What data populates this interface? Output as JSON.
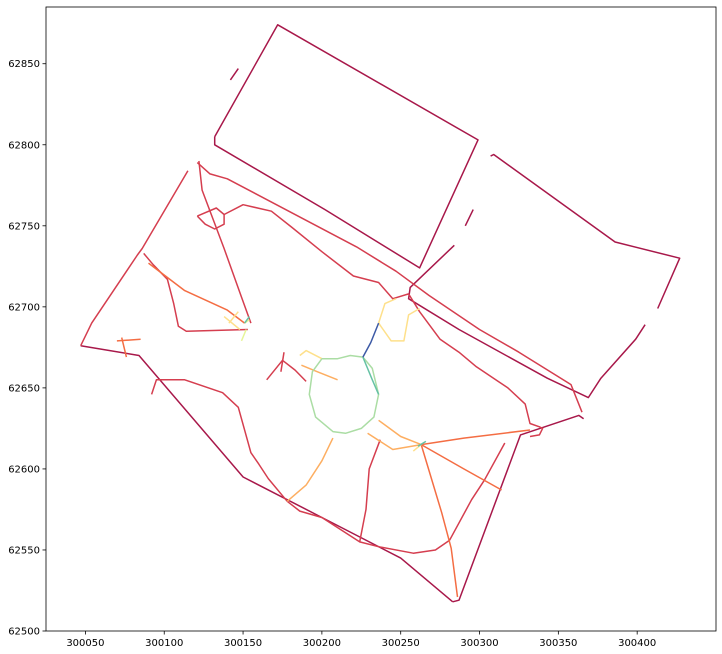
{
  "chart_data": {
    "type": "line",
    "title": "",
    "xlabel": "",
    "ylabel": "",
    "xlim": [
      300025,
      300450
    ],
    "ylim": [
      62500,
      62885
    ],
    "xticks": [
      300050,
      300100,
      300150,
      300200,
      300250,
      300300,
      300350,
      300400
    ],
    "yticks": [
      62500,
      62550,
      62600,
      62650,
      62700,
      62750,
      62800,
      62850
    ],
    "xtick_labels": [
      "300050",
      "300100",
      "300150",
      "300200",
      "300250",
      "300300",
      "300350",
      "300400"
    ],
    "ytick_labels": [
      "62500",
      "62550",
      "62600",
      "62650",
      "62700",
      "62750",
      "62800",
      "62850"
    ],
    "grid": false,
    "colors": {
      "crimson": "#a8184a",
      "red": "#d53e4f",
      "orange": "#f46d43",
      "light_orange": "#fdae61",
      "yellow": "#fee08b",
      "pale_yellow": "#e6f598",
      "light_green": "#abdda4",
      "teal": "#66c2a5",
      "blue": "#3d5aa6"
    },
    "series": [
      {
        "color": "crimson",
        "points": [
          [
            300132,
            62805
          ],
          [
            300172,
            62874
          ],
          [
            300299,
            62803
          ],
          [
            300262,
            62724
          ],
          [
            300202,
            62760
          ],
          [
            300132,
            62800
          ],
          [
            300132,
            62805
          ]
        ]
      },
      {
        "color": "crimson",
        "points": [
          [
            300142,
            62840
          ],
          [
            300147,
            62847
          ]
        ]
      },
      {
        "color": "crimson",
        "points": [
          [
            300307,
            62793
          ],
          [
            300309,
            62794
          ],
          [
            300386,
            62740
          ],
          [
            300427,
            62730
          ],
          [
            300413,
            62699
          ]
        ]
      },
      {
        "color": "crimson",
        "points": [
          [
            300296,
            62760
          ],
          [
            300291,
            62750
          ]
        ]
      },
      {
        "color": "crimson",
        "points": [
          [
            300405,
            62689
          ],
          [
            300399,
            62680
          ],
          [
            300377,
            62656
          ],
          [
            300369,
            62644
          ],
          [
            300343,
            62656
          ],
          [
            300287,
            62686
          ],
          [
            300255,
            62705
          ],
          [
            300256,
            62712
          ],
          [
            300284,
            62738
          ]
        ]
      },
      {
        "color": "crimson",
        "points": [
          [
            300366,
            62631
          ],
          [
            300363,
            62633
          ],
          [
            300326,
            62621
          ],
          [
            300287,
            62519
          ],
          [
            300283,
            62518
          ]
        ]
      },
      {
        "color": "crimson",
        "points": [
          [
            300283,
            62518
          ],
          [
            300250,
            62545
          ],
          [
            300200,
            62570
          ],
          [
            300150,
            62595
          ],
          [
            300084,
            62670
          ],
          [
            300047,
            62676
          ]
        ]
      },
      {
        "color": "red",
        "points": [
          [
            300047,
            62676
          ],
          [
            300054,
            62690
          ],
          [
            300083,
            62732
          ],
          [
            300086,
            62736
          ],
          [
            300115,
            62784
          ]
        ]
      },
      {
        "color": "red",
        "points": [
          [
            300121,
            62789
          ],
          [
            300129,
            62782
          ],
          [
            300140,
            62779
          ],
          [
            300222,
            62737
          ],
          [
            300247,
            62722
          ],
          [
            300268,
            62707
          ],
          [
            300300,
            62686
          ],
          [
            300325,
            62672
          ],
          [
            300358,
            62652
          ],
          [
            300365,
            62635
          ]
        ]
      },
      {
        "color": "red",
        "points": [
          [
            300122,
            62790
          ],
          [
            300124,
            62772
          ],
          [
            300138,
            62736
          ],
          [
            300149,
            62706
          ],
          [
            300155,
            62690
          ]
        ]
      },
      {
        "color": "red",
        "points": [
          [
            300087,
            62733
          ],
          [
            300093,
            62726
          ],
          [
            300102,
            62717
          ],
          [
            300106,
            62702
          ],
          [
            300109,
            62688
          ],
          [
            300114,
            62685
          ],
          [
            300153,
            62686
          ]
        ]
      },
      {
        "color": "red",
        "points": [
          [
            300121,
            62756
          ],
          [
            300133,
            62761
          ],
          [
            300138,
            62757
          ],
          [
            300138,
            62751
          ],
          [
            300132,
            62748
          ],
          [
            300126,
            62751
          ],
          [
            300121,
            62756
          ]
        ]
      },
      {
        "color": "red",
        "points": [
          [
            300138,
            62757
          ],
          [
            300150,
            62763
          ],
          [
            300168,
            62759
          ],
          [
            300181,
            62749
          ],
          [
            300200,
            62734
          ],
          [
            300220,
            62719
          ],
          [
            300236,
            62715
          ],
          [
            300245,
            62705
          ],
          [
            300255,
            62708
          ]
        ]
      },
      {
        "color": "red",
        "points": [
          [
            300255,
            62708
          ],
          [
            300262,
            62697
          ],
          [
            300275,
            62680
          ],
          [
            300287,
            62672
          ],
          [
            300298,
            62663
          ],
          [
            300318,
            62650
          ],
          [
            300329,
            62640
          ],
          [
            300332,
            62628
          ],
          [
            300338,
            62626
          ],
          [
            300340,
            62625
          ],
          [
            300338,
            62621
          ],
          [
            300332,
            62620
          ]
        ]
      },
      {
        "color": "red",
        "points": [
          [
            300316,
            62616
          ],
          [
            300303,
            62593
          ],
          [
            300295,
            62581
          ],
          [
            300281,
            62556
          ],
          [
            300272,
            62550
          ],
          [
            300258,
            62548
          ],
          [
            300236,
            62552
          ],
          [
            300224,
            62555
          ],
          [
            300228,
            62575
          ],
          [
            300230,
            62600
          ],
          [
            300237,
            62618
          ]
        ]
      },
      {
        "color": "red",
        "points": [
          [
            300092,
            62646
          ],
          [
            300095,
            62655
          ],
          [
            300113,
            62655
          ],
          [
            300137,
            62647
          ],
          [
            300147,
            62638
          ],
          [
            300155,
            62610
          ],
          [
            300160,
            62603
          ],
          [
            300166,
            62594
          ],
          [
            300178,
            62580
          ]
        ]
      },
      {
        "color": "red",
        "points": [
          [
            300178,
            62580
          ],
          [
            300186,
            62574
          ],
          [
            300200,
            62570
          ],
          [
            300224,
            62555
          ]
        ]
      },
      {
        "color": "red",
        "points": [
          [
            300165,
            62655
          ],
          [
            300175,
            62667
          ],
          [
            300183,
            62661
          ],
          [
            300190,
            62654
          ]
        ]
      },
      {
        "color": "red",
        "points": [
          [
            300174,
            62660
          ],
          [
            300176,
            62672
          ]
        ]
      },
      {
        "color": "orange",
        "points": [
          [
            300090,
            62727
          ],
          [
            300113,
            62710
          ],
          [
            300140,
            62698
          ],
          [
            300151,
            62690
          ]
        ]
      },
      {
        "color": "orange",
        "points": [
          [
            300073,
            62681
          ],
          [
            300076,
            62669
          ]
        ]
      },
      {
        "color": "orange",
        "points": [
          [
            300070,
            62679
          ],
          [
            300085,
            62680
          ]
        ]
      },
      {
        "color": "orange",
        "points": [
          [
            300263,
            62615
          ],
          [
            300290,
            62619
          ],
          [
            300332,
            62624
          ]
        ]
      },
      {
        "color": "orange",
        "points": [
          [
            300263,
            62615
          ],
          [
            300276,
            62573
          ],
          [
            300282,
            62551
          ],
          [
            300286,
            62521
          ]
        ]
      },
      {
        "color": "orange",
        "points": [
          [
            300263,
            62615
          ],
          [
            300290,
            62600
          ],
          [
            300314,
            62587
          ]
        ]
      },
      {
        "color": "light_orange",
        "points": [
          [
            300178,
            62580
          ],
          [
            300190,
            62590
          ],
          [
            300200,
            62605
          ],
          [
            300207,
            62619
          ]
        ]
      },
      {
        "color": "light_orange",
        "points": [
          [
            300229,
            62622
          ],
          [
            300245,
            62612
          ],
          [
            300263,
            62615
          ]
        ]
      },
      {
        "color": "light_orange",
        "points": [
          [
            300236,
            62630
          ],
          [
            300250,
            62620
          ],
          [
            300263,
            62615
          ]
        ]
      },
      {
        "color": "light_orange",
        "points": [
          [
            300187,
            62664
          ],
          [
            300197,
            62660
          ],
          [
            300210,
            62655
          ]
        ]
      },
      {
        "color": "yellow",
        "points": [
          [
            300138,
            62694
          ],
          [
            300148,
            62686
          ]
        ]
      },
      {
        "color": "yellow",
        "points": [
          [
            300141,
            62690
          ],
          [
            300147,
            62697
          ]
        ]
      },
      {
        "color": "yellow",
        "points": [
          [
            300236,
            62690
          ],
          [
            300240,
            62702
          ],
          [
            300247,
            62705
          ]
        ]
      },
      {
        "color": "yellow",
        "points": [
          [
            300236,
            62690
          ],
          [
            300244,
            62679
          ],
          [
            300252,
            62679
          ],
          [
            300255,
            62695
          ],
          [
            300262,
            62699
          ]
        ]
      },
      {
        "color": "yellow",
        "points": [
          [
            300200,
            62668
          ],
          [
            300190,
            62673
          ],
          [
            300186,
            62670
          ]
        ]
      },
      {
        "color": "yellow",
        "points": [
          [
            300263,
            62615
          ],
          [
            300258,
            62611
          ]
        ]
      },
      {
        "color": "pale_yellow",
        "points": [
          [
            300151,
            62690
          ],
          [
            300154,
            62692
          ]
        ]
      },
      {
        "color": "pale_yellow",
        "points": [
          [
            300152,
            62686
          ],
          [
            300149,
            62679
          ]
        ]
      },
      {
        "color": "light_green",
        "points": [
          [
            300200,
            62668
          ],
          [
            300194,
            62660
          ],
          [
            300192,
            62646
          ],
          [
            300196,
            62632
          ],
          [
            300207,
            62623
          ],
          [
            300215,
            62622
          ],
          [
            300225,
            62625
          ],
          [
            300233,
            62632
          ],
          [
            300236,
            62646
          ],
          [
            300232,
            62662
          ],
          [
            300226,
            62669
          ],
          [
            300218,
            62670
          ],
          [
            300210,
            62668
          ],
          [
            300200,
            62668
          ]
        ]
      },
      {
        "color": "teal",
        "points": [
          [
            300151,
            62690
          ],
          [
            300154,
            62694
          ]
        ]
      },
      {
        "color": "teal",
        "points": [
          [
            300226,
            62669
          ],
          [
            300232,
            62655
          ],
          [
            300236,
            62646
          ]
        ]
      },
      {
        "color": "teal",
        "points": [
          [
            300261,
            62614
          ],
          [
            300266,
            62617
          ]
        ]
      },
      {
        "color": "blue",
        "points": [
          [
            300226,
            62669
          ],
          [
            300231,
            62678
          ],
          [
            300236,
            62690
          ]
        ]
      }
    ]
  }
}
